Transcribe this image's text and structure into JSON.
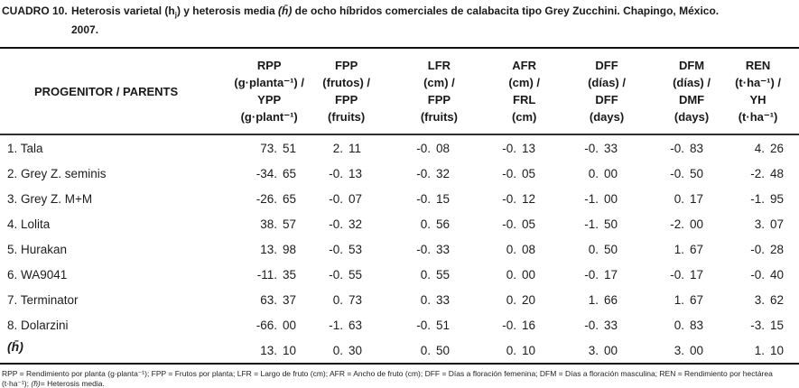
{
  "caption": {
    "label": "CUADRO 10.",
    "line1_pre": "Heterosis varietal (h",
    "line1_sub": "j",
    "line1_mid": ") y heterosis media ",
    "line1_hbar": "(h̄)",
    "line1_post": " de ocho híbridos comerciales de calabacita tipo Grey Zucchini. Chapingo, México.",
    "line2": "2007."
  },
  "table": {
    "row_header": "PROGENITOR / PARENTS",
    "columns": [
      {
        "id": "rpp",
        "lines": [
          "RPP",
          "(g·planta⁻¹) /",
          "YPP",
          "(g·plant⁻¹)"
        ]
      },
      {
        "id": "fpp",
        "lines": [
          "FPP",
          "(frutos) /",
          "FPP",
          "(fruits)"
        ]
      },
      {
        "id": "lfr",
        "lines": [
          "LFR",
          "(cm) /",
          "FPP",
          "(fruits)"
        ]
      },
      {
        "id": "afr",
        "lines": [
          "AFR",
          "(cm) /",
          "FRL",
          "(cm)"
        ]
      },
      {
        "id": "dff",
        "lines": [
          "DFF",
          "(días) /",
          "DFF",
          "(days)"
        ]
      },
      {
        "id": "dfm",
        "lines": [
          "DFM",
          "(días) /",
          "DMF",
          "(days)"
        ]
      },
      {
        "id": "ren",
        "lines": [
          "REN",
          "(t·ha⁻¹) /",
          "YH",
          "(t·ha⁻¹)"
        ]
      }
    ],
    "rows": [
      {
        "label": "1. Tala",
        "hbar": false,
        "values": [
          [
            "73.",
            "51"
          ],
          [
            "2.",
            "11"
          ],
          [
            "-0.",
            "08"
          ],
          [
            "-0.",
            "13"
          ],
          [
            "-0.",
            "33"
          ],
          [
            "-0.",
            "83"
          ],
          [
            "4.",
            "26"
          ]
        ]
      },
      {
        "label": "2. Grey Z. seminis",
        "hbar": false,
        "values": [
          [
            "-34.",
            "65"
          ],
          [
            "-0.",
            "13"
          ],
          [
            "-0.",
            "32"
          ],
          [
            "-0.",
            "05"
          ],
          [
            "0.",
            "00"
          ],
          [
            "-0.",
            "50"
          ],
          [
            "-2.",
            "48"
          ]
        ]
      },
      {
        "label": "3. Grey Z. M+M",
        "hbar": false,
        "values": [
          [
            "-26.",
            "65"
          ],
          [
            "-0.",
            "07"
          ],
          [
            "-0.",
            "15"
          ],
          [
            "-0.",
            "12"
          ],
          [
            "-1.",
            "00"
          ],
          [
            "0.",
            "17"
          ],
          [
            "-1.",
            "95"
          ]
        ]
      },
      {
        "label": "4. Lolita",
        "hbar": false,
        "values": [
          [
            "38.",
            "57"
          ],
          [
            "-0.",
            "32"
          ],
          [
            "0.",
            "56"
          ],
          [
            "-0.",
            "05"
          ],
          [
            "-1.",
            "50"
          ],
          [
            "-2.",
            "00"
          ],
          [
            "3.",
            "07"
          ]
        ]
      },
      {
        "label": "5. Hurakan",
        "hbar": false,
        "values": [
          [
            "13.",
            "98"
          ],
          [
            "-0.",
            "53"
          ],
          [
            "-0.",
            "33"
          ],
          [
            "0.",
            "08"
          ],
          [
            "0.",
            "50"
          ],
          [
            "1.",
            "67"
          ],
          [
            "-0.",
            "28"
          ]
        ]
      },
      {
        "label": "6. WA9041",
        "hbar": false,
        "values": [
          [
            "-11.",
            "35"
          ],
          [
            "-0.",
            "55"
          ],
          [
            "0.",
            "55"
          ],
          [
            "0.",
            "00"
          ],
          [
            "-0.",
            "17"
          ],
          [
            "-0.",
            "17"
          ],
          [
            "-0.",
            "40"
          ]
        ]
      },
      {
        "label": "7. Terminator",
        "hbar": false,
        "values": [
          [
            "63.",
            "37"
          ],
          [
            "0.",
            "73"
          ],
          [
            "0.",
            "33"
          ],
          [
            "0.",
            "20"
          ],
          [
            "1.",
            "66"
          ],
          [
            "1.",
            "67"
          ],
          [
            "3.",
            "62"
          ]
        ]
      },
      {
        "label": "8. Dolarzini",
        "hbar": false,
        "values": [
          [
            "-66.",
            "00"
          ],
          [
            "-1.",
            "63"
          ],
          [
            "-0.",
            "51"
          ],
          [
            "-0.",
            "16"
          ],
          [
            "-0.",
            "33"
          ],
          [
            "0.",
            "83"
          ],
          [
            "-3.",
            "15"
          ]
        ]
      },
      {
        "label": "(h̄)",
        "hbar": true,
        "values": [
          [
            "13.",
            "10"
          ],
          [
            "0.",
            "30"
          ],
          [
            "0.",
            "50"
          ],
          [
            "0.",
            "10"
          ],
          [
            "3.",
            "00"
          ],
          [
            "3.",
            "00"
          ],
          [
            "1.",
            "10"
          ]
        ]
      }
    ]
  },
  "footnote": {
    "part1": "RPP = Rendimiento por planta (g·planta⁻¹); FPP = Frutos por planta; LFR = Largo de fruto (cm); AFR = Ancho de fruto (cm); DFF = Días a floración femenina; DFM = Días a floración masculina; REN = Rendimiento por hectárea (t·ha⁻¹); ",
    "hbar": "(h̄)",
    "part2": "= Heterosis media."
  }
}
